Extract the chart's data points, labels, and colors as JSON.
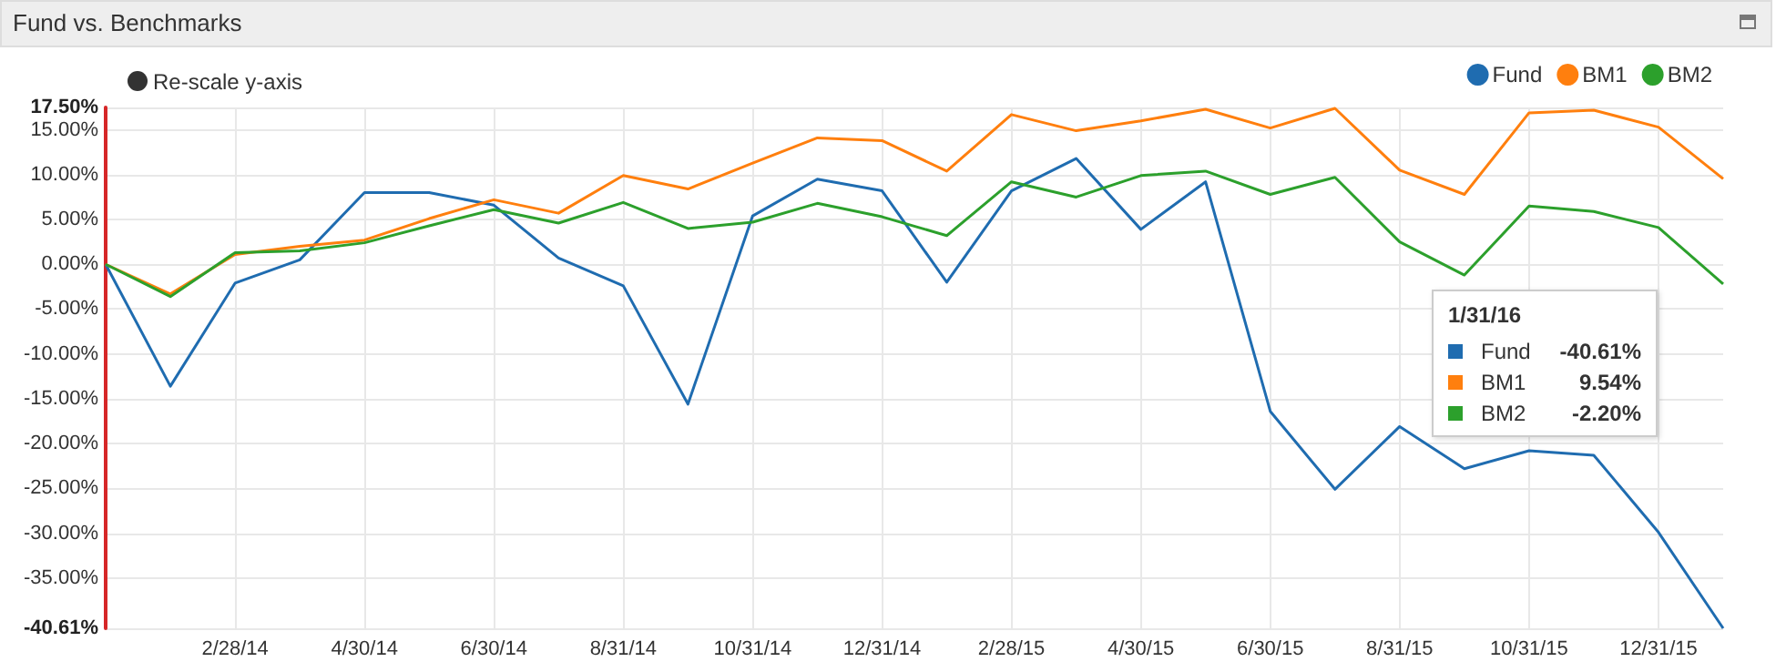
{
  "chart_data": {
    "type": "line",
    "title": "Fund vs. Benchmarks",
    "categories": [
      null,
      null,
      "2/28/14",
      null,
      "4/30/14",
      null,
      "6/30/14",
      null,
      "8/31/14",
      null,
      "10/31/14",
      null,
      "12/31/14",
      null,
      "2/28/15",
      null,
      "4/30/15",
      null,
      "6/30/15",
      null,
      "8/31/15",
      null,
      "10/31/15",
      null,
      "12/31/15",
      null
    ],
    "series": [
      {
        "name": "Fund",
        "color": "#1f6cb0",
        "values": [
          0,
          -13.6,
          -2.1,
          0.5,
          8.0,
          8.0,
          6.6,
          0.7,
          -2.4,
          -15.6,
          5.4,
          9.5,
          8.2,
          -2.0,
          8.2,
          11.8,
          3.9,
          9.2,
          -16.4,
          -25.1,
          -18.1,
          -22.8,
          -20.8,
          -21.3,
          -29.9,
          -40.61
        ]
      },
      {
        "name": "BM1",
        "color": "#ff7f0e",
        "values": [
          0,
          -3.3,
          1.1,
          2.0,
          2.7,
          5.1,
          7.2,
          5.7,
          9.9,
          8.4,
          11.3,
          14.1,
          13.8,
          10.4,
          16.7,
          14.9,
          16.0,
          17.3,
          15.2,
          17.4,
          10.5,
          7.8,
          16.9,
          17.2,
          15.3,
          9.54
        ]
      },
      {
        "name": "BM2",
        "color": "#2ca02c",
        "values": [
          0,
          -3.6,
          1.3,
          1.5,
          2.4,
          4.3,
          6.1,
          4.6,
          6.9,
          4.0,
          4.7,
          6.8,
          5.3,
          3.2,
          9.2,
          7.5,
          9.9,
          10.4,
          7.8,
          9.7,
          2.5,
          -1.2,
          6.5,
          5.9,
          4.1,
          -2.2
        ]
      }
    ],
    "ylim": [
      -40.61,
      17.5
    ],
    "yticks": [
      {
        "value": 17.5,
        "label": "17.50%"
      },
      {
        "value": 15,
        "label": "15.00%"
      },
      {
        "value": 10,
        "label": "10.00%"
      },
      {
        "value": 5,
        "label": "5.00%"
      },
      {
        "value": 0,
        "label": "0.00%"
      },
      {
        "value": -5,
        "label": "-5.00%"
      },
      {
        "value": -10,
        "label": "-10.00%"
      },
      {
        "value": -15,
        "label": "-15.00%"
      },
      {
        "value": -20,
        "label": "-20.00%"
      },
      {
        "value": -25,
        "label": "-25.00%"
      },
      {
        "value": -30,
        "label": "-30.00%"
      },
      {
        "value": -35,
        "label": "-35.00%"
      },
      {
        "value": -40.61,
        "label": "-40.61%"
      }
    ],
    "annotations": [
      "Re-scale y-axis",
      "1/31/16",
      "-40.61%",
      "9.54%",
      "-2.20%"
    ],
    "grid": true,
    "legend": "top right",
    "marker": "none",
    "line_style": "solid"
  }
}
